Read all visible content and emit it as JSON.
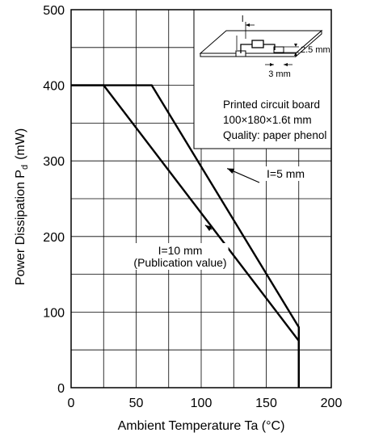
{
  "chart_data": {
    "type": "line",
    "xlabel": "Ambient Temperature Ta (°C)",
    "ylabel": {
      "prefix": "Power Dissipation P",
      "subscript": "d",
      "suffix": "(mW)"
    },
    "xlim": [
      0,
      200
    ],
    "ylim": [
      0,
      500
    ],
    "x_ticks": [
      0,
      50,
      100,
      150,
      200
    ],
    "y_ticks": [
      0,
      100,
      200,
      300,
      400,
      500
    ],
    "grid": true,
    "x_minor_step": 25,
    "y_minor_step": 50,
    "series": [
      {
        "name": "I=5 mm",
        "points": [
          [
            0,
            400
          ],
          [
            62,
            400
          ],
          [
            175,
            80
          ],
          [
            175,
            0
          ]
        ]
      },
      {
        "name": "I=10 mm",
        "points": [
          [
            0,
            400
          ],
          [
            25,
            400
          ],
          [
            175,
            62
          ],
          [
            175,
            0
          ]
        ]
      }
    ],
    "annotations": [
      {
        "lines": [
          "I=5 mm"
        ],
        "arrow_to": [
          120,
          290
        ]
      },
      {
        "lines": [
          "I=10 mm",
          "(Publication value)"
        ],
        "arrow_to": [
          103,
          215
        ]
      }
    ],
    "inset": {
      "lines": [
        "Printed circuit board",
        "100×180×1.6t mm",
        "Quality: paper phenol"
      ],
      "dim_labels": [
        "l",
        "2.5 mm",
        "3 mm"
      ]
    }
  }
}
